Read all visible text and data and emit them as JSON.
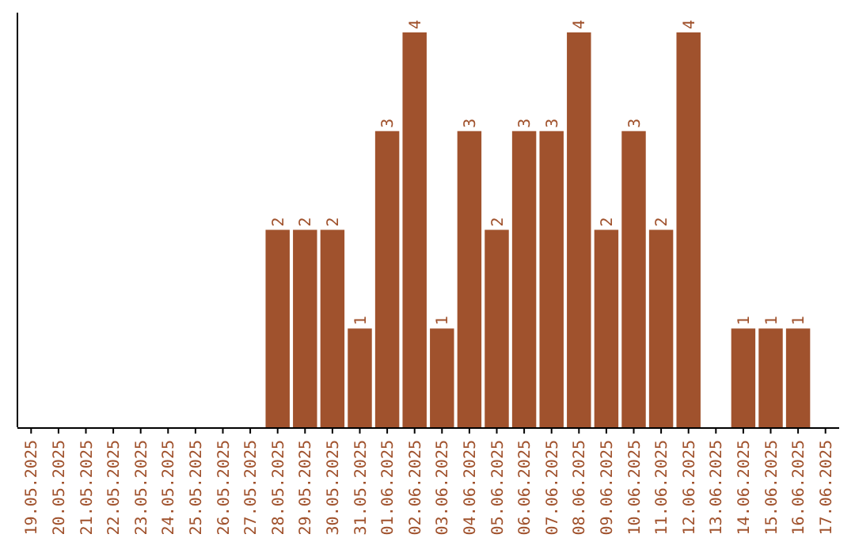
{
  "chart_data": {
    "type": "bar",
    "categories": [
      "19.05.2025",
      "20.05.2025",
      "21.05.2025",
      "22.05.2025",
      "23.05.2025",
      "24.05.2025",
      "25.05.2025",
      "26.05.2025",
      "27.05.2025",
      "28.05.2025",
      "29.05.2025",
      "30.05.2025",
      "31.05.2025",
      "01.06.2025",
      "02.06.2025",
      "03.06.2025",
      "04.06.2025",
      "05.06.2025",
      "06.06.2025",
      "07.06.2025",
      "08.06.2025",
      "09.06.2025",
      "10.06.2025",
      "11.06.2025",
      "12.06.2025",
      "13.06.2025",
      "14.06.2025",
      "15.06.2025",
      "16.06.2025",
      "17.06.2025"
    ],
    "values": [
      0,
      0,
      0,
      0,
      0,
      0,
      0,
      0,
      0,
      2,
      2,
      2,
      1,
      3,
      4,
      1,
      3,
      2,
      3,
      3,
      4,
      2,
      3,
      2,
      4,
      0,
      1,
      1,
      1,
      0
    ],
    "value_labels": [
      null,
      null,
      null,
      null,
      null,
      null,
      null,
      null,
      null,
      "2",
      "2",
      "2",
      "1",
      "3",
      "4",
      "1",
      "3",
      "2",
      "3",
      "3",
      "4",
      "2",
      "3",
      "2",
      "4",
      null,
      "1",
      "1",
      "1",
      null
    ],
    "color": "#a0522d",
    "grid": false,
    "tick_labels": "x"
  }
}
